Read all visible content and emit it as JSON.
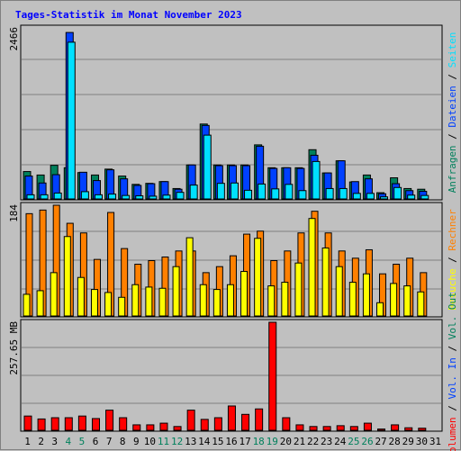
{
  "title": "Tages-Statistik im Monat November 2023",
  "colors": {
    "background": "#c0c0c0",
    "grid": "#808080",
    "hits": "#00805c",
    "files": "#0040ff",
    "pages": "#00e0ff",
    "visits": "#ffff00",
    "sites": "#ff8000",
    "kbytes": "#ff0000",
    "weekend_label": "#00805c",
    "weekday_label": "#000000"
  },
  "days": [
    "1",
    "2",
    "3",
    "4",
    "5",
    "6",
    "7",
    "8",
    "9",
    "10",
    "11",
    "12",
    "13",
    "14",
    "15",
    "16",
    "17",
    "18",
    "19",
    "20",
    "21",
    "22",
    "23",
    "24",
    "25",
    "26",
    "27",
    "28",
    "29",
    "30",
    "31"
  ],
  "weekend_days": [
    4,
    5,
    11,
    12,
    18,
    19,
    25,
    26
  ],
  "legend_top": [
    {
      "text": "Anfragen",
      "color": "#00805c"
    },
    {
      "text": " / ",
      "color": "#000000"
    },
    {
      "text": "Dateien",
      "color": "#0040ff"
    },
    {
      "text": " / ",
      "color": "#000000"
    },
    {
      "text": "Seiten",
      "color": "#00e0ff"
    }
  ],
  "legend_mid": [
    {
      "text": "Besuche",
      "color": "#ffff00"
    },
    {
      "text": " / ",
      "color": "#000000"
    },
    {
      "text": "Rechner",
      "color": "#ff8000"
    }
  ],
  "legend_bottom": [
    {
      "text": "Volumen",
      "color": "#ff0000"
    },
    {
      "text": " / ",
      "color": "#000000"
    },
    {
      "text": "Vol. In",
      "color": "#0040ff"
    },
    {
      "text": " / ",
      "color": "#000000"
    },
    {
      "text": "Vol. Out",
      "color": "#00805c"
    }
  ],
  "chart_data": [
    {
      "type": "bar",
      "ymax_label": "2466",
      "ylim": [
        0,
        2466
      ],
      "series": [
        {
          "name": "Anfragen",
          "values": [
            395,
            345,
            485,
            450,
            380,
            345,
            430,
            330,
            210,
            225,
            250,
            150,
            490,
            1080,
            490,
            490,
            490,
            780,
            450,
            450,
            450,
            710,
            375,
            550,
            245,
            345,
            90,
            305,
            150,
            140,
            0
          ]
        },
        {
          "name": "Dateien",
          "values": [
            330,
            230,
            350,
            2400,
            385,
            265,
            420,
            290,
            195,
            220,
            250,
            140,
            490,
            1060,
            480,
            480,
            480,
            760,
            440,
            450,
            440,
            630,
            375,
            550,
            250,
            290,
            75,
            220,
            120,
            110,
            0
          ]
        },
        {
          "name": "Seiten",
          "values": [
            60,
            60,
            85,
            2260,
            105,
            60,
            70,
            50,
            45,
            40,
            55,
            95,
            200,
            920,
            225,
            230,
            125,
            215,
            145,
            210,
            120,
            540,
            150,
            150,
            80,
            80,
            30,
            165,
            55,
            50,
            0
          ]
        }
      ]
    },
    {
      "type": "bar",
      "ymax_label": "184",
      "ylim": [
        0,
        184
      ],
      "series": [
        {
          "name": "Besuche",
          "values": [
            36,
            42,
            72,
            132,
            64,
            44,
            39,
            31,
            52,
            48,
            46,
            82,
            130,
            52,
            44,
            52,
            74,
            129,
            50,
            56,
            88,
            162,
            113,
            82,
            56,
            70,
            22,
            54,
            50,
            40,
            0
          ]
        },
        {
          "name": "Rechner",
          "values": [
            170,
            176,
            184,
            154,
            138,
            94,
            172,
            112,
            86,
            92,
            98,
            108,
            108,
            72,
            82,
            100,
            136,
            141,
            92,
            108,
            138,
            174,
            138,
            108,
            96,
            110,
            70,
            86,
            96,
            72,
            0
          ]
        }
      ]
    },
    {
      "type": "bar",
      "ymax_label": "257.65 MB",
      "ylim": [
        0,
        257.65
      ],
      "series": [
        {
          "name": "Volumen",
          "values": [
            34,
            27,
            30,
            30,
            34,
            28,
            48,
            30,
            13,
            13,
            17,
            9,
            48,
            26,
            30,
            58,
            38,
            51,
            257.65,
            30,
            13,
            9,
            9,
            11,
            9,
            17,
            3,
            13,
            6,
            5,
            0
          ]
        }
      ]
    }
  ]
}
